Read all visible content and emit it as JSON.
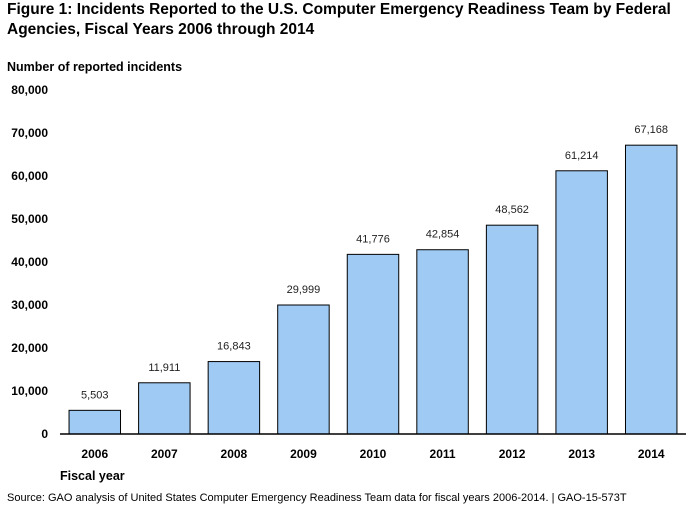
{
  "figure": {
    "title": "Figure 1: Incidents Reported to the U.S. Computer Emergency Readiness Team by Federal Agencies, Fiscal Years 2006 through 2014",
    "source": "Source: GAO analysis of United States Computer Emergency Readiness Team data for fiscal years 2006-2014.  |  GAO-15-573T"
  },
  "colors": {
    "bar_fill": "#9fcaf4",
    "bar_stroke": "#000000"
  },
  "chart_data": {
    "type": "bar",
    "title": "Figure 1: Incidents Reported to the U.S. Computer Emergency Readiness Team by Federal Agencies, Fiscal Years 2006 through 2014",
    "xlabel": "Fiscal year",
    "ylabel": "Number of reported incidents",
    "categories": [
      "2006",
      "2007",
      "2008",
      "2009",
      "2010",
      "2011",
      "2012",
      "2013",
      "2014"
    ],
    "values": [
      5503,
      11911,
      16843,
      29999,
      41776,
      42854,
      48562,
      61214,
      67168
    ],
    "value_labels": [
      "5,503",
      "11,911",
      "16,843",
      "29,999",
      "41,776",
      "42,854",
      "48,562",
      "61,214",
      "67,168"
    ],
    "yticks": [
      "0",
      "10,000",
      "20,000",
      "30,000",
      "40,000",
      "50,000",
      "60,000",
      "70,000",
      "80,000"
    ],
    "ylim": [
      0,
      80000
    ],
    "grid": false,
    "legend": "none"
  }
}
